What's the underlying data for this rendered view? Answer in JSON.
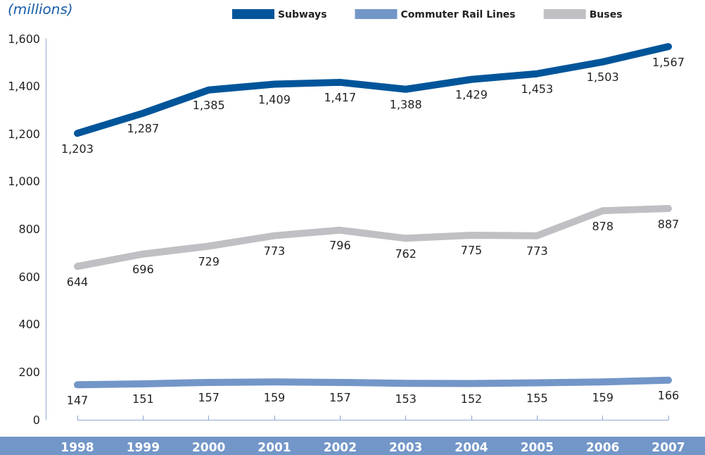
{
  "chart_data": {
    "type": "line",
    "ylabel": "(millions)",
    "categories": [
      "1998",
      "1999",
      "2000",
      "2001",
      "2002",
      "2003",
      "2004",
      "2005",
      "2006",
      "2007"
    ],
    "series": [
      {
        "name": "Subways",
        "color": "#00559a",
        "values": [
          1203,
          1287,
          1385,
          1409,
          1417,
          1388,
          1429,
          1453,
          1503,
          1567
        ],
        "value_labels": [
          "1,203",
          "1,287",
          "1,385",
          "1,409",
          "1,417",
          "1,388",
          "1,429",
          "1,453",
          "1,503",
          "1,567"
        ]
      },
      {
        "name": "Commuter Rail Lines",
        "color": "#7396c8",
        "values": [
          147,
          151,
          157,
          159,
          157,
          153,
          152,
          155,
          159,
          166
        ]
      },
      {
        "name": "Buses",
        "color": "#c0c0c4",
        "values": [
          644,
          696,
          729,
          773,
          796,
          762,
          775,
          773,
          878,
          887
        ]
      }
    ],
    "ylim": [
      0,
      1600
    ],
    "yticks": [
      0,
      200,
      400,
      600,
      800,
      {
        "value": 1000,
        "label": "1,000"
      },
      {
        "value": 1200,
        "label": "1,200"
      },
      {
        "value": 1400,
        "label": "1,400"
      },
      {
        "value": 1600,
        "label": "1,600"
      }
    ],
    "grid": false,
    "legend": "top",
    "data_labels": true,
    "line_style": "solid"
  }
}
